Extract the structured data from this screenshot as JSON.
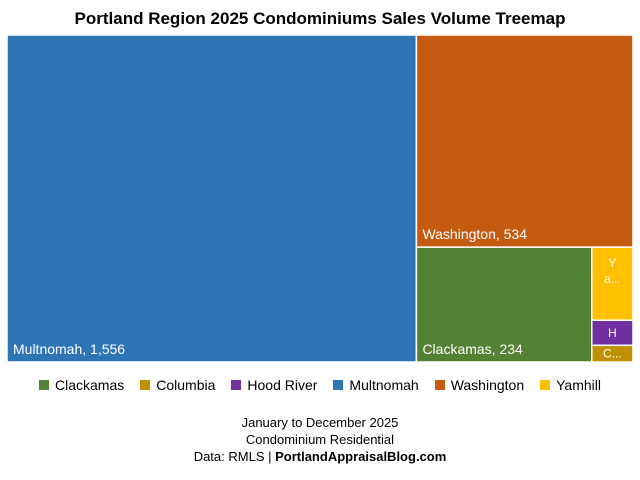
{
  "chart_data": {
    "type": "treemap",
    "title": "Portland Region 2025 Condominiums Sales Volume Treemap",
    "series": [
      {
        "name": "Multnomah",
        "value": 1556,
        "label": "Multnomah, 1,556",
        "color": "#2E75B6"
      },
      {
        "name": "Washington",
        "value": 534,
        "label": "Washington, 534",
        "color": "#C55A11"
      },
      {
        "name": "Clackamas",
        "value": 234,
        "label": "Clackamas, 234",
        "color": "#548235"
      },
      {
        "name": "Yamhill",
        "value": 35,
        "label": "Ya...",
        "color": "#FFC000"
      },
      {
        "name": "Hood River",
        "value": 12,
        "label": "H",
        "color": "#7030A0"
      },
      {
        "name": "Columbia",
        "value": 8,
        "label": "C...",
        "color": "#BF9000"
      }
    ],
    "legend": [
      "Clackamas",
      "Columbia",
      "Hood River",
      "Multnomah",
      "Washington",
      "Yamhill"
    ],
    "legend_position": "bottom"
  },
  "footer": {
    "line1": "January to December 2025",
    "line2": "Condominium Residential",
    "line3_prefix": "Data: RMLS | ",
    "line3_site": "PortlandAppraisalBlog.com"
  }
}
